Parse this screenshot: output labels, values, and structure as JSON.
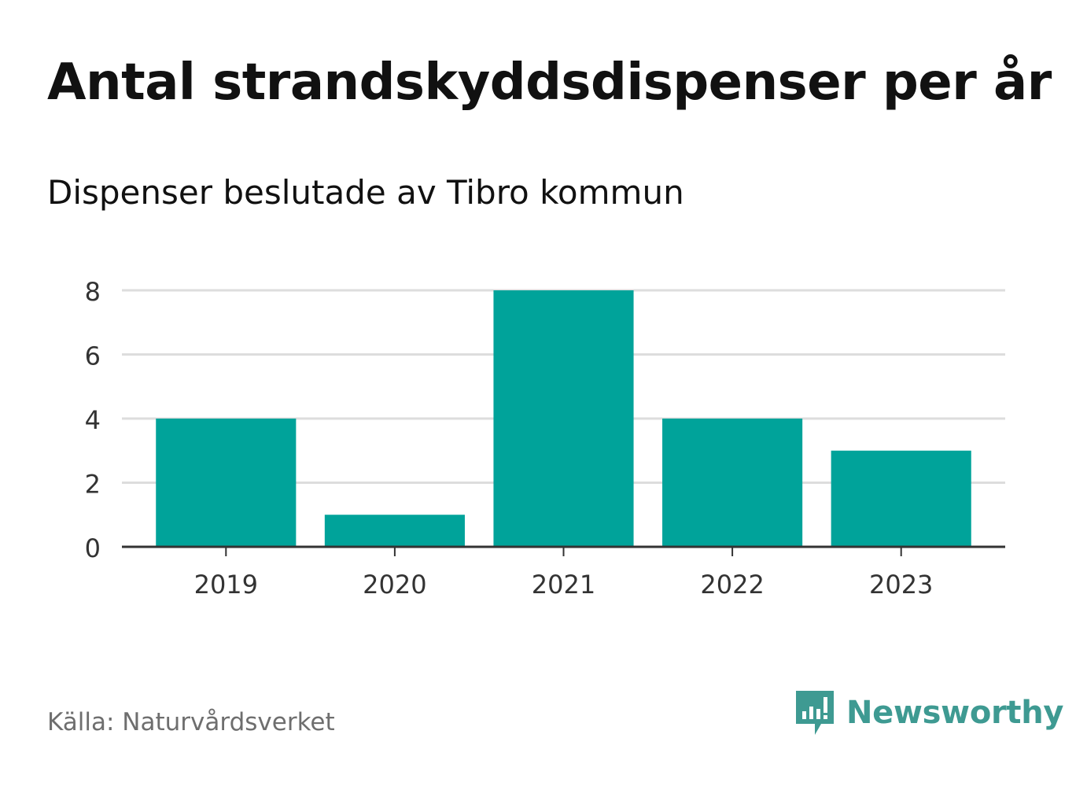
{
  "header": {
    "title": "Antal strandskyddsdispenser per år",
    "subtitle": "Dispenser beslutade av Tibro kommun"
  },
  "footer": {
    "source": "Källa: Naturvårdsverket",
    "brand": "Newsworthy",
    "brand_icon": "newsworthy-logo-icon"
  },
  "colors": {
    "bar": "#00a39a",
    "grid": "#dddddd",
    "axis": "#333333",
    "brand": "#3e9a92"
  },
  "chart_data": {
    "type": "bar",
    "title": "Antal strandskyddsdispenser per år",
    "subtitle": "Dispenser beslutade av Tibro kommun",
    "categories": [
      "2019",
      "2020",
      "2021",
      "2022",
      "2023"
    ],
    "values": [
      4,
      1,
      8,
      4,
      3
    ],
    "xlabel": "",
    "ylabel": "",
    "ylim": [
      0,
      8
    ],
    "yticks": [
      0,
      2,
      4,
      6,
      8
    ],
    "grid": true
  }
}
